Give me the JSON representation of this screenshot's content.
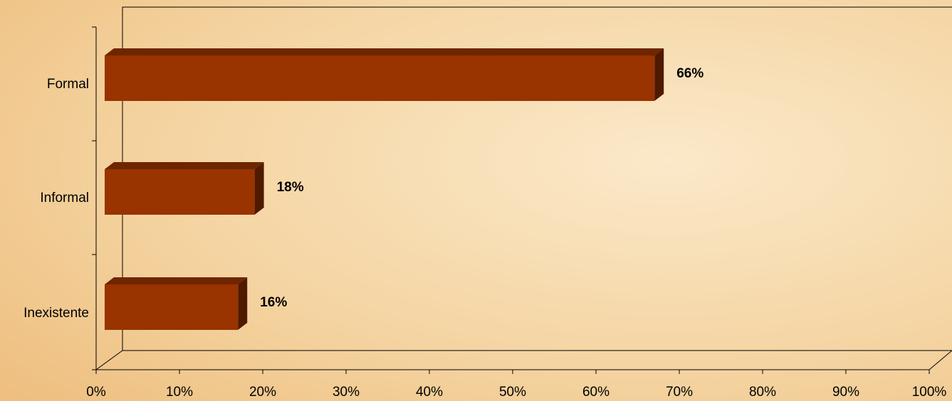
{
  "chart_data": {
    "type": "bar3d_horizontal",
    "categories": [
      "Formal",
      "Informal",
      "Inexistente"
    ],
    "values": [
      66,
      18,
      16
    ],
    "value_labels": [
      "66%",
      "18%",
      "16%"
    ],
    "color": "#993300",
    "xlim": [
      0,
      100
    ],
    "xticks": [
      {
        "value": 0,
        "label": "0%"
      },
      {
        "value": 10,
        "label": "10%"
      },
      {
        "value": 20,
        "label": "20%"
      },
      {
        "value": 30,
        "label": "30%"
      },
      {
        "value": 40,
        "label": "40%"
      },
      {
        "value": 50,
        "label": "50%"
      },
      {
        "value": 60,
        "label": "60%"
      },
      {
        "value": 70,
        "label": "70%"
      },
      {
        "value": 80,
        "label": "80%"
      },
      {
        "value": 90,
        "label": "90%"
      },
      {
        "value": 100,
        "label": "100%"
      }
    ],
    "grid": false
  }
}
